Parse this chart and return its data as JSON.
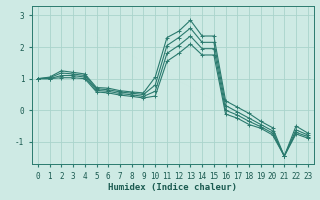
{
  "xlabel": "Humidex (Indice chaleur)",
  "ylabel": "",
  "xlim": [
    -0.5,
    23.5
  ],
  "ylim": [
    -1.7,
    3.3
  ],
  "yticks": [
    -1,
    0,
    1,
    2,
    3
  ],
  "xticks": [
    0,
    1,
    2,
    3,
    4,
    5,
    6,
    7,
    8,
    9,
    10,
    11,
    12,
    13,
    14,
    15,
    16,
    17,
    18,
    19,
    20,
    21,
    22,
    23
  ],
  "bg_color": "#ceeae4",
  "grid_color": "#aad4cc",
  "line_color": "#2a7a6e",
  "lines": [
    [
      1.0,
      1.05,
      1.25,
      1.2,
      1.15,
      0.72,
      0.7,
      0.62,
      0.58,
      0.55,
      1.05,
      2.3,
      2.5,
      2.85,
      2.35,
      2.35,
      0.3,
      0.1,
      -0.1,
      -0.35,
      -0.55,
      -1.45,
      -0.5,
      -0.72
    ],
    [
      1.0,
      1.03,
      1.18,
      1.15,
      1.1,
      0.68,
      0.65,
      0.58,
      0.54,
      0.5,
      0.8,
      2.05,
      2.3,
      2.6,
      2.15,
      2.15,
      0.15,
      -0.05,
      -0.25,
      -0.45,
      -0.65,
      -1.45,
      -0.62,
      -0.78
    ],
    [
      1.0,
      1.0,
      1.1,
      1.1,
      1.05,
      0.63,
      0.6,
      0.53,
      0.49,
      0.44,
      0.6,
      1.8,
      2.05,
      2.35,
      1.95,
      1.95,
      0.0,
      -0.15,
      -0.35,
      -0.52,
      -0.72,
      -1.45,
      -0.7,
      -0.83
    ],
    [
      1.0,
      1.0,
      1.03,
      1.03,
      1.0,
      0.58,
      0.55,
      0.48,
      0.44,
      0.39,
      0.45,
      1.55,
      1.8,
      2.1,
      1.75,
      1.75,
      -0.12,
      -0.25,
      -0.45,
      -0.57,
      -0.78,
      -1.45,
      -0.75,
      -0.88
    ]
  ],
  "marker": "+",
  "markersize": 3,
  "linewidth": 0.8,
  "label_fontsize": 5.5,
  "xlabel_fontsize": 6.5
}
